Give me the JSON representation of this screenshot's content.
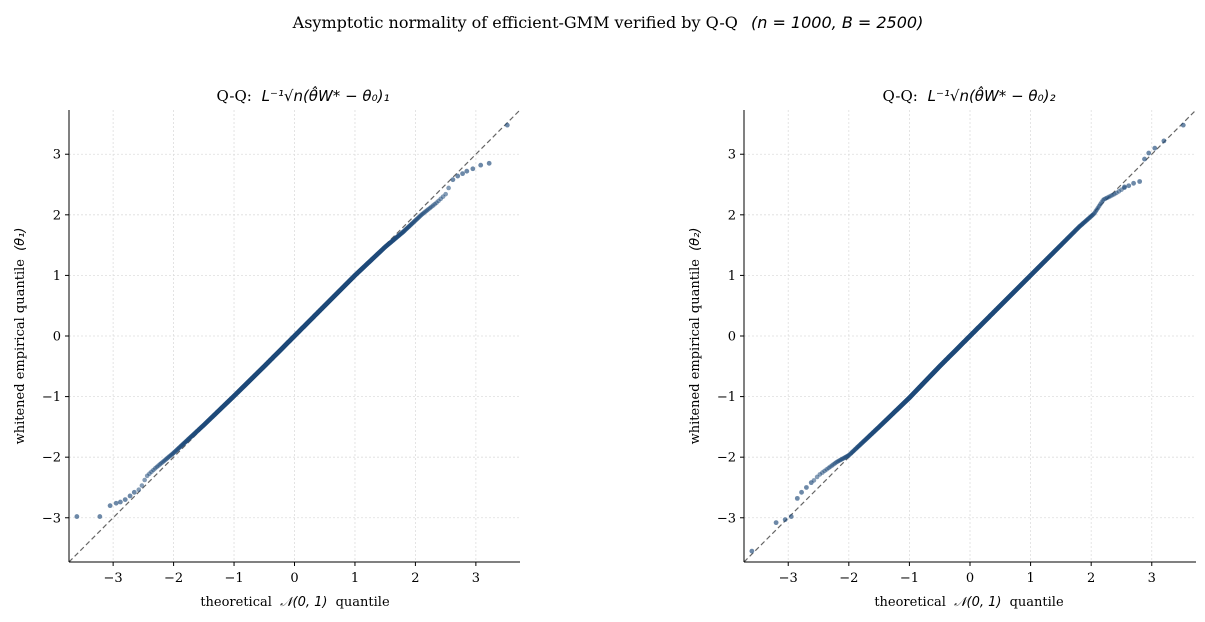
{
  "figure": {
    "suptitle_text": "Asymptotic normality of efficient-GMM verified by Q-Q",
    "suptitle_math": "(n = 1000, B = 2500)"
  },
  "colors": {
    "points": "#1f4a7a",
    "reference_line": "#666666",
    "grid": "#dddddd",
    "axis": "#000000"
  },
  "chart_data": [
    {
      "type": "scatter",
      "title_prefix": "Q-Q:",
      "title_math": "L⁻¹√n(θ̂W* − θ₀)₁",
      "xlabel_text": "theoretical",
      "xlabel_math": "𝒩(0, 1)",
      "xlabel_suffix": "quantile",
      "ylabel_text": "whitened empirical quantile",
      "ylabel_math": "(θ₁)",
      "xlim": [
        -3.73,
        3.73
      ],
      "ylim": [
        -3.73,
        3.73
      ],
      "xticks": [
        -3,
        -2,
        -1,
        0,
        1,
        2,
        3
      ],
      "yticks": [
        -3,
        -2,
        -1,
        0,
        1,
        2,
        3
      ],
      "xtick_labels": [
        "−3",
        "−2",
        "−1",
        "0",
        "1",
        "2",
        "3"
      ],
      "ytick_labels": [
        "−3",
        "−2",
        "−1",
        "0",
        "1",
        "2",
        "3"
      ],
      "grid": true,
      "reference_line": "y = x",
      "series": [
        {
          "n_points": 2500,
          "quantile_anchors": [
            [
              -3.6,
              -2.98
            ],
            [
              -3.22,
              -2.98
            ],
            [
              -3.0,
              -2.78
            ],
            [
              -2.85,
              -2.72
            ],
            [
              -2.7,
              -2.62
            ],
            [
              -2.55,
              -2.52
            ],
            [
              -2.45,
              -2.32
            ],
            [
              -2.3,
              -2.18
            ],
            [
              -2.0,
              -1.93
            ],
            [
              -1.5,
              -1.47
            ],
            [
              -1.0,
              -0.99
            ],
            [
              -0.5,
              -0.5
            ],
            [
              0.0,
              0.0
            ],
            [
              0.5,
              0.5
            ],
            [
              1.0,
              1.0
            ],
            [
              1.5,
              1.47
            ],
            [
              1.8,
              1.72
            ],
            [
              2.1,
              2.0
            ],
            [
              2.35,
              2.2
            ],
            [
              2.5,
              2.34
            ],
            [
              2.6,
              2.55
            ],
            [
              2.75,
              2.68
            ],
            [
              2.95,
              2.78
            ],
            [
              3.22,
              2.85
            ],
            [
              3.52,
              3.48
            ]
          ],
          "tail_points": [
            [
              -3.6,
              -2.98
            ],
            [
              -3.22,
              -2.98
            ],
            [
              -3.05,
              -2.8
            ],
            [
              -2.95,
              -2.76
            ],
            [
              -2.88,
              -2.74
            ],
            [
              -2.8,
              -2.7
            ],
            [
              -2.72,
              -2.64
            ],
            [
              -2.65,
              -2.58
            ],
            [
              2.62,
              2.58
            ],
            [
              2.7,
              2.64
            ],
            [
              2.78,
              2.68
            ],
            [
              2.85,
              2.72
            ],
            [
              2.95,
              2.76
            ],
            [
              3.08,
              2.82
            ],
            [
              3.22,
              2.85
            ],
            [
              3.52,
              3.48
            ]
          ]
        }
      ]
    },
    {
      "type": "scatter",
      "title_prefix": "Q-Q:",
      "title_math": "L⁻¹√n(θ̂W* − θ₀)₂",
      "xlabel_text": "theoretical",
      "xlabel_math": "𝒩(0, 1)",
      "xlabel_suffix": "quantile",
      "ylabel_text": "whitened empirical quantile",
      "ylabel_math": "(θ₂)",
      "xlim": [
        -3.73,
        3.73
      ],
      "ylim": [
        -3.73,
        3.73
      ],
      "xticks": [
        -3,
        -2,
        -1,
        0,
        1,
        2,
        3
      ],
      "yticks": [
        -3,
        -2,
        -1,
        0,
        1,
        2,
        3
      ],
      "xtick_labels": [
        "−3",
        "−2",
        "−1",
        "0",
        "1",
        "2",
        "3"
      ],
      "ytick_labels": [
        "−3",
        "−2",
        "−1",
        "0",
        "1",
        "2",
        "3"
      ],
      "grid": true,
      "reference_line": "y = x",
      "series": [
        {
          "n_points": 2500,
          "quantile_anchors": [
            [
              -3.6,
              -3.55
            ],
            [
              -3.2,
              -3.08
            ],
            [
              -3.0,
              -3.0
            ],
            [
              -2.85,
              -2.7
            ],
            [
              -2.7,
              -2.52
            ],
            [
              -2.5,
              -2.3
            ],
            [
              -2.2,
              -2.08
            ],
            [
              -2.0,
              -1.97
            ],
            [
              -1.5,
              -1.5
            ],
            [
              -1.0,
              -1.02
            ],
            [
              -0.5,
              -0.5
            ],
            [
              0.0,
              0.0
            ],
            [
              0.5,
              0.5
            ],
            [
              1.0,
              1.0
            ],
            [
              1.5,
              1.5
            ],
            [
              1.8,
              1.8
            ],
            [
              2.05,
              2.02
            ],
            [
              2.2,
              2.25
            ],
            [
              2.4,
              2.35
            ],
            [
              2.6,
              2.48
            ],
            [
              2.8,
              2.55
            ],
            [
              2.95,
              2.95
            ],
            [
              3.2,
              3.22
            ],
            [
              3.52,
              3.48
            ]
          ],
          "tail_points": [
            [
              -3.6,
              -3.55
            ],
            [
              -3.2,
              -3.08
            ],
            [
              -3.05,
              -3.03
            ],
            [
              -2.95,
              -2.98
            ],
            [
              -2.85,
              -2.68
            ],
            [
              -2.78,
              -2.58
            ],
            [
              -2.7,
              -2.5
            ],
            [
              -2.62,
              -2.42
            ],
            [
              2.55,
              2.46
            ],
            [
              2.62,
              2.48
            ],
            [
              2.7,
              2.52
            ],
            [
              2.8,
              2.55
            ],
            [
              2.88,
              2.92
            ],
            [
              2.95,
              3.02
            ],
            [
              3.05,
              3.1
            ],
            [
              3.2,
              3.22
            ],
            [
              3.52,
              3.48
            ]
          ]
        }
      ]
    }
  ]
}
